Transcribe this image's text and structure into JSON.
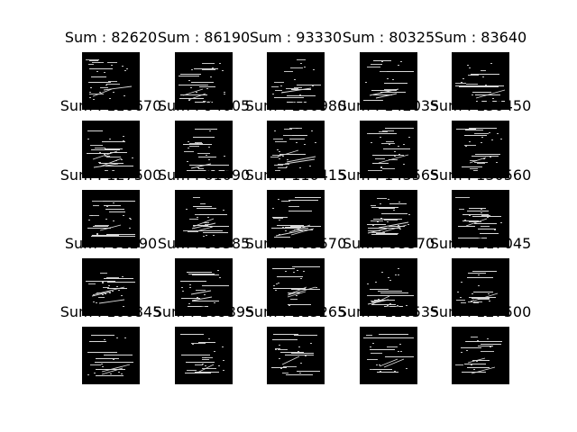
{
  "figure": {
    "background": "#ffffff",
    "panel_background": "#000000",
    "stroke_color": "#d8d8d8",
    "panels": [
      {
        "title": "Sum : 82620"
      },
      {
        "title": "Sum : 86190"
      },
      {
        "title": "Sum : 93330"
      },
      {
        "title": "Sum : 80325"
      },
      {
        "title": "Sum : 83640"
      },
      {
        "title": "Sum : 110670"
      },
      {
        "title": "Sum : 94005"
      },
      {
        "title": "Sum : 100980"
      },
      {
        "title": "Sum : 142035"
      },
      {
        "title": "Sum : 130450"
      },
      {
        "title": "Sum : 127500"
      },
      {
        "title": "Sum : 81090"
      },
      {
        "title": "Sum : 110415"
      },
      {
        "title": "Sum : 143565"
      },
      {
        "title": "Sum : 130560"
      },
      {
        "title": "Sum : 91290"
      },
      {
        "title": "Sum : 95385"
      },
      {
        "title": "Sum : 105570"
      },
      {
        "title": "Sum : 95370"
      },
      {
        "title": "Sum : 117045"
      },
      {
        "title": "Sum : 106845"
      },
      {
        "title": "Sum : 109395"
      },
      {
        "title": "Sum : 113265"
      },
      {
        "title": "Sum : 116535"
      },
      {
        "title": "Sum : 127500"
      }
    ]
  }
}
